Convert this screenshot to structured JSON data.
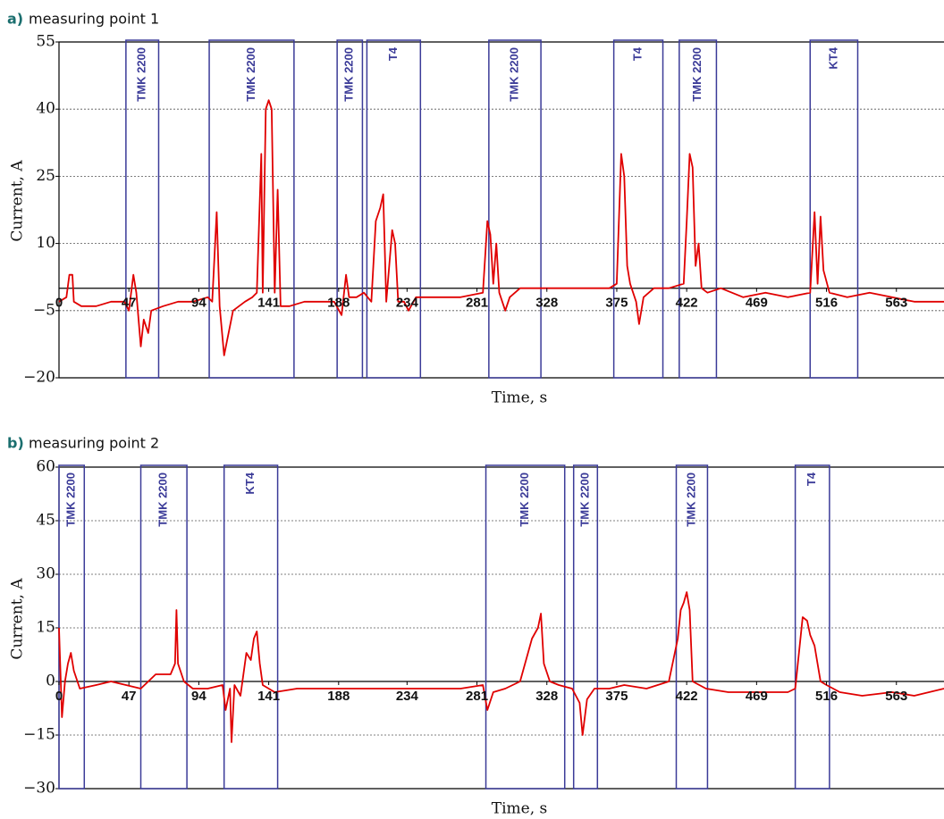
{
  "chart_data": [
    {
      "type": "line",
      "panel_label": "a)",
      "subtitle": "measuring point 1",
      "xlabel": "Time, s",
      "ylabel": "Current, A",
      "xlim": [
        0,
        595
      ],
      "ylim": [
        -20,
        55
      ],
      "xticks": [
        0,
        47,
        94,
        141,
        188,
        234,
        281,
        328,
        375,
        422,
        469,
        516,
        563
      ],
      "yticks": [
        55,
        40,
        25,
        10,
        {
          "value": -5,
          "label": "−5"
        },
        {
          "value": -20,
          "label": "−20"
        }
      ],
      "grid": true,
      "color": "#e00000",
      "annotation_color": "#3b3b98",
      "annotations": [
        {
          "text": "TMK 2200",
          "x": [
            45,
            67
          ]
        },
        {
          "text": "TMK 2200",
          "x": [
            101,
            158
          ]
        },
        {
          "text": "TMK 2200",
          "x": [
            187,
            204
          ]
        },
        {
          "text": "T4",
          "x": [
            207,
            243
          ]
        },
        {
          "text": "TMK 2200",
          "x": [
            289,
            324
          ]
        },
        {
          "text": "T4",
          "x": [
            373,
            406
          ]
        },
        {
          "text": "TMK 2200",
          "x": [
            417,
            442
          ]
        },
        {
          "text": "KT4",
          "x": [
            505,
            537
          ]
        }
      ],
      "x": [
        0,
        5,
        7,
        9,
        10,
        15,
        25,
        35,
        44,
        47,
        50,
        52,
        55,
        57,
        60,
        62,
        70,
        80,
        90,
        100,
        103,
        106,
        108,
        111,
        114,
        117,
        125,
        130,
        133,
        136,
        137,
        139,
        141,
        143,
        145,
        147,
        149,
        155,
        165,
        175,
        185,
        190,
        193,
        195,
        200,
        205,
        210,
        213,
        216,
        218,
        220,
        222,
        224,
        226,
        228,
        232,
        235,
        240,
        250,
        270,
        285,
        288,
        290,
        292,
        294,
        296,
        300,
        303,
        310,
        330,
        350,
        370,
        375,
        378,
        380,
        382,
        384,
        388,
        390,
        393,
        400,
        410,
        420,
        422,
        424,
        426,
        428,
        430,
        432,
        436,
        445,
        460,
        475,
        490,
        505,
        508,
        510,
        512,
        514,
        518,
        530,
        545,
        560,
        575,
        595
      ],
      "values": [
        -3,
        -2,
        3,
        3,
        -3,
        -4,
        -4,
        -3,
        -3,
        -5,
        3,
        -1,
        -13,
        -7,
        -10,
        -5,
        -4,
        -3,
        -3,
        -2,
        -3,
        17,
        -4,
        -15,
        -10,
        -5,
        -3,
        -2,
        -1,
        30,
        -1,
        40,
        42,
        40,
        -1,
        22,
        -4,
        -4,
        -3,
        -3,
        -3,
        -6,
        3,
        -2,
        -2,
        -1,
        -3,
        15,
        18,
        21,
        -3,
        5,
        13,
        10,
        -3,
        -3,
        -5,
        -2,
        -2,
        -2,
        -1,
        15,
        12,
        1,
        10,
        -1,
        -5,
        -2,
        0,
        0,
        0,
        0,
        1,
        30,
        25,
        5,
        1,
        -3,
        -8,
        -2,
        0,
        0,
        1,
        15,
        30,
        27,
        5,
        10,
        0,
        -1,
        0,
        -2,
        -1,
        -2,
        -1,
        17,
        1,
        16,
        4,
        -1,
        -2,
        -1,
        -2,
        -3,
        -3
      ]
    },
    {
      "type": "line",
      "panel_label": "b)",
      "subtitle": "measuring point 2",
      "xlabel": "Time, s",
      "ylabel": "Current, A",
      "xlim": [
        0,
        595
      ],
      "ylim": [
        -30,
        60
      ],
      "xticks": [
        0,
        47,
        94,
        141,
        188,
        234,
        281,
        328,
        375,
        422,
        469,
        516,
        563
      ],
      "yticks": [
        60,
        45,
        30,
        15,
        0,
        {
          "value": -15,
          "label": "−15"
        },
        {
          "value": -30,
          "label": "−30"
        }
      ],
      "grid": true,
      "color": "#e00000",
      "annotation_color": "#3b3b98",
      "annotations": [
        {
          "text": "TMK 2200",
          "x": [
            0,
            17
          ]
        },
        {
          "text": "TMK 2200",
          "x": [
            55,
            86
          ]
        },
        {
          "text": "KT4",
          "x": [
            111,
            147
          ]
        },
        {
          "text": "TMK 2200",
          "x": [
            287,
            340
          ]
        },
        {
          "text": "TMK 2200",
          "x": [
            346,
            362
          ]
        },
        {
          "text": "TMK 2200",
          "x": [
            415,
            436
          ]
        },
        {
          "text": "T4",
          "x": [
            495,
            518
          ]
        }
      ],
      "x": [
        0,
        2,
        4,
        6,
        8,
        10,
        14,
        25,
        35,
        45,
        55,
        65,
        75,
        78,
        79,
        80,
        84,
        90,
        100,
        110,
        112,
        115,
        116,
        118,
        122,
        126,
        129,
        131,
        133,
        135,
        137,
        145,
        160,
        175,
        200,
        225,
        250,
        270,
        285,
        288,
        292,
        300,
        310,
        318,
        322,
        324,
        326,
        330,
        336,
        345,
        350,
        352,
        355,
        360,
        370,
        380,
        395,
        410,
        416,
        418,
        420,
        422,
        424,
        426,
        435,
        450,
        470,
        490,
        495,
        500,
        503,
        505,
        508,
        512,
        516,
        525,
        540,
        560,
        575,
        595
      ],
      "values": [
        15,
        -10,
        0,
        5,
        8,
        3,
        -2,
        -1,
        0,
        -1,
        -2,
        2,
        2,
        5,
        20,
        5,
        0,
        -2,
        -2,
        -1,
        -8,
        -2,
        -17,
        -1,
        -4,
        8,
        6,
        12,
        14,
        5,
        -1,
        -3,
        -2,
        -2,
        -2,
        -2,
        -2,
        -2,
        -1,
        -8,
        -3,
        -2,
        0,
        12,
        15,
        19,
        5,
        0,
        -1,
        -2,
        -6,
        -15,
        -5,
        -2,
        -2,
        -1,
        -2,
        0,
        12,
        20,
        22,
        25,
        20,
        0,
        -2,
        -3,
        -3,
        -3,
        -2,
        18,
        17,
        13,
        10,
        0,
        -1,
        -3,
        -4,
        -3,
        -4,
        -2
      ]
    }
  ]
}
